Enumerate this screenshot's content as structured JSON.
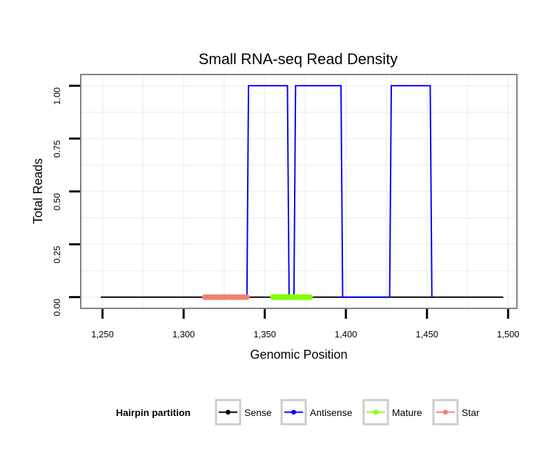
{
  "chart_data": {
    "type": "line",
    "title": "Small RNA-seq Read Density",
    "xlabel": "Genomic Position",
    "ylabel": "Total Reads",
    "xlim": [
      1237,
      1505
    ],
    "ylim": [
      -0.05,
      1.05
    ],
    "x_ticks": [
      1250,
      1300,
      1350,
      1400,
      1450,
      1500
    ],
    "x_tick_labels": [
      "1,250",
      "1,300",
      "1,350",
      "1,400",
      "1,450",
      "1,500"
    ],
    "y_ticks": [
      0,
      0.25,
      0.5,
      0.75,
      1
    ],
    "y_tick_labels": [
      "0.00",
      "0.25",
      "0.50",
      "0.75",
      "1.00"
    ],
    "grid": true,
    "legend": {
      "title": "Hairpin partition",
      "position": "bottom"
    },
    "series": [
      {
        "name": "Sense",
        "color": "#000000",
        "points": [
          [
            1249,
            0
          ],
          [
            1497,
            0
          ]
        ]
      },
      {
        "name": "Antisense",
        "color": "#0000ff",
        "points": [
          [
            1339,
            0
          ],
          [
            1340,
            1
          ],
          [
            1364,
            1
          ],
          [
            1365,
            0
          ],
          [
            1368,
            0
          ],
          [
            1369,
            1
          ],
          [
            1397,
            1
          ],
          [
            1398,
            0
          ],
          [
            1427,
            0
          ],
          [
            1428,
            1
          ],
          [
            1452,
            1
          ],
          [
            1453,
            0
          ]
        ]
      },
      {
        "name": "Mature",
        "color": "#80ff00",
        "points": [
          [
            1355,
            0
          ],
          [
            1378,
            0
          ]
        ]
      },
      {
        "name": "Star",
        "color": "#f08070",
        "points": [
          [
            1313,
            0
          ],
          [
            1339,
            0
          ]
        ]
      }
    ]
  }
}
